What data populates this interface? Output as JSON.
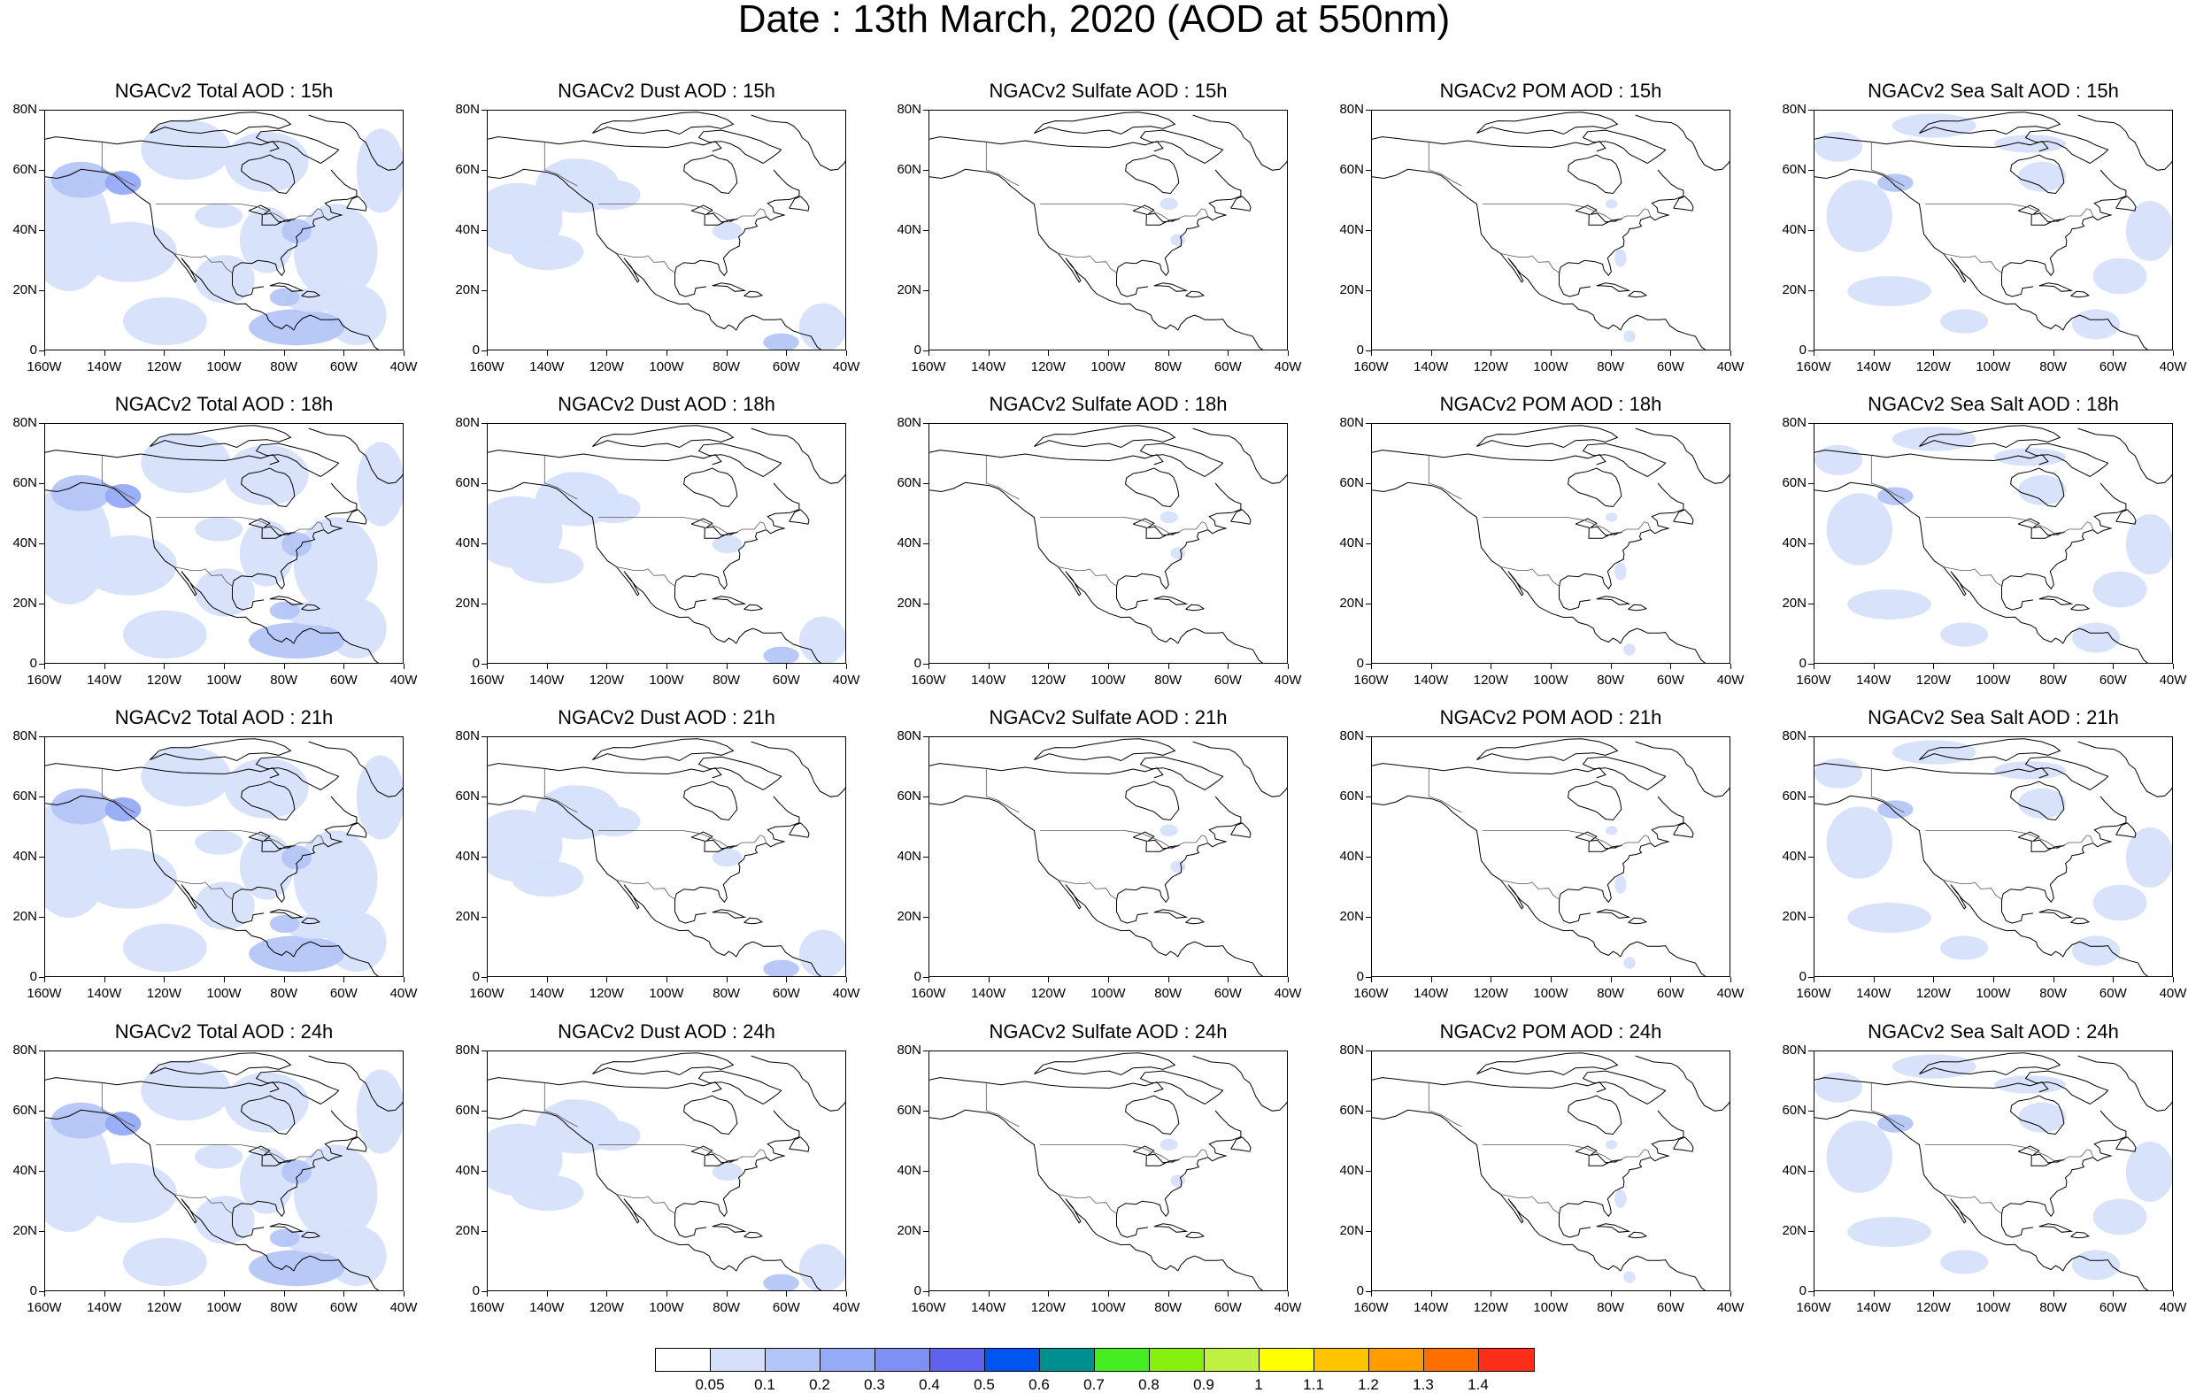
{
  "title": "Date : 13th March, 2020 (AOD at 550nm)",
  "lat_labels": [
    "80N",
    "60N",
    "40N",
    "20N",
    "0"
  ],
  "lon_labels": [
    "160W",
    "140W",
    "120W",
    "100W",
    "80W",
    "60W",
    "40W"
  ],
  "panel_titles": [
    [
      "NGACv2 Total AOD : 15h",
      "NGACv2 Dust AOD : 15h",
      "NGACv2 Sulfate AOD : 15h",
      "NGACv2 POM AOD : 15h",
      "NGACv2 Sea Salt AOD : 15h"
    ],
    [
      "NGACv2 Total AOD : 18h",
      "NGACv2 Dust AOD : 18h",
      "NGACv2 Sulfate AOD : 18h",
      "NGACv2 POM AOD : 18h",
      "NGACv2 Sea Salt AOD : 18h"
    ],
    [
      "NGACv2 Total AOD : 21h",
      "NGACv2 Dust AOD : 21h",
      "NGACv2 Sulfate AOD : 21h",
      "NGACv2 POM AOD : 21h",
      "NGACv2 Sea Salt AOD : 21h"
    ],
    [
      "NGACv2 Total AOD : 24h",
      "NGACv2 Dust AOD : 24h",
      "NGACv2 Sulfate AOD : 24h",
      "NGACv2 POM AOD : 24h",
      "NGACv2 Sea Salt  AOD : 24h"
    ]
  ],
  "colorbar": {
    "labels": [
      "0.05",
      "0.1",
      "0.2",
      "0.3",
      "0.4",
      "0.5",
      "0.6",
      "0.7",
      "0.8",
      "0.9",
      "1",
      "1.1",
      "1.2",
      "1.3",
      "1.4"
    ],
    "colors": [
      "#ffffff",
      "#d6e0fb",
      "#b4c5f7",
      "#95abf7",
      "#7f90f5",
      "#5e62ef",
      "#0055f0",
      "#009090",
      "#44ee22",
      "#88f011",
      "#c0f040",
      "#ffff00",
      "#ffc400",
      "#ff9c00",
      "#ff6e00",
      "#ff2e1a"
    ]
  },
  "aerosol_fields": {
    "total": "widespread light-blue AOD (0.05-0.2) over North Pacific, Canada, eastern US, Atlantic and Caribbean",
    "dust": "light-blue AOD over North Pacific and Gulf of Alaska, small patches over Caribbean",
    "sulfate": "mostly below 0.05 with small light-blue patches near Great Lakes and US east coast",
    "pom": "mostly below 0.05 with small light-blue patches near US east coast",
    "seasalt": "light-blue AOD over North Pacific storm track, Hudson Bay and western Atlantic"
  }
}
